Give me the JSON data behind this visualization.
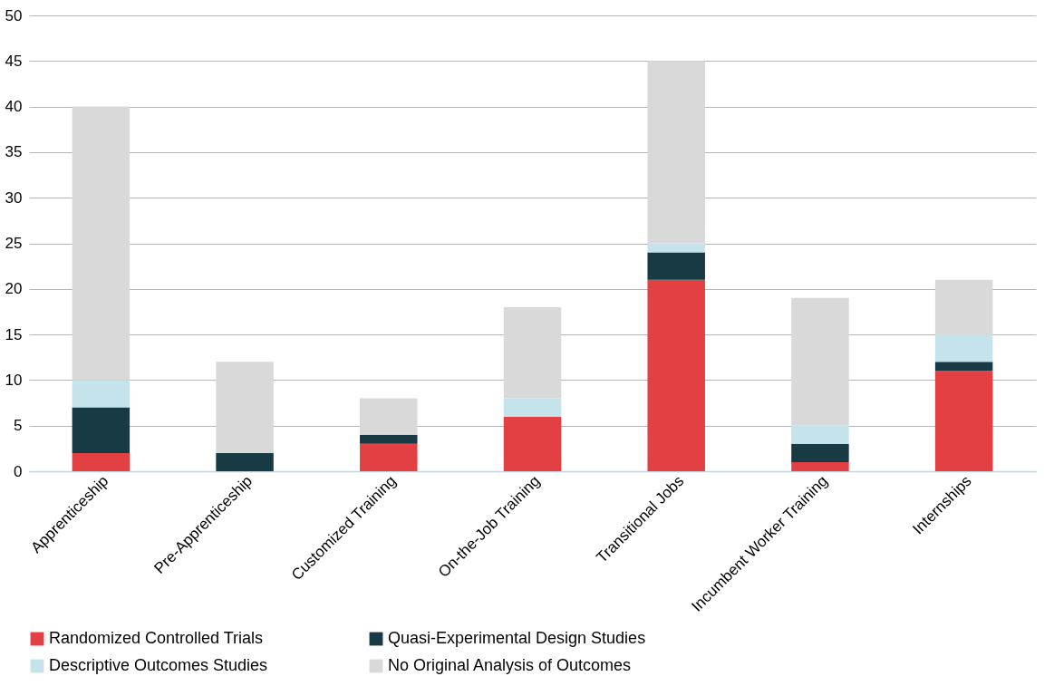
{
  "chart_data": {
    "type": "bar",
    "stacked": true,
    "categories": [
      "Apprenticeship",
      "Pre-Apprenticeship",
      "Customized Training",
      "On-the-Job Training",
      "Transitional Jobs",
      "Incumbent Worker Training",
      "Internships"
    ],
    "series": [
      {
        "name": "Randomized Controlled Trials",
        "color": "#e34043",
        "values": [
          2,
          0,
          3,
          6,
          21,
          1,
          11
        ]
      },
      {
        "name": "Quasi-Experimental Design Studies",
        "color": "#173a45",
        "values": [
          5,
          2,
          1,
          0,
          3,
          2,
          1
        ]
      },
      {
        "name": "Descriptive Outcomes Studies",
        "color": "#c5e3ea",
        "values": [
          3,
          0,
          0,
          2,
          1,
          2,
          3
        ]
      },
      {
        "name": "No Original Analysis of Outcomes",
        "color": "#d9d9d9",
        "values": [
          30,
          10,
          4,
          10,
          20,
          14,
          6
        ]
      }
    ],
    "ylim": [
      0,
      50
    ],
    "yticks": [
      0,
      5,
      10,
      15,
      20,
      25,
      30,
      35,
      40,
      45,
      50
    ],
    "grid": "y",
    "legend": "bottom"
  }
}
